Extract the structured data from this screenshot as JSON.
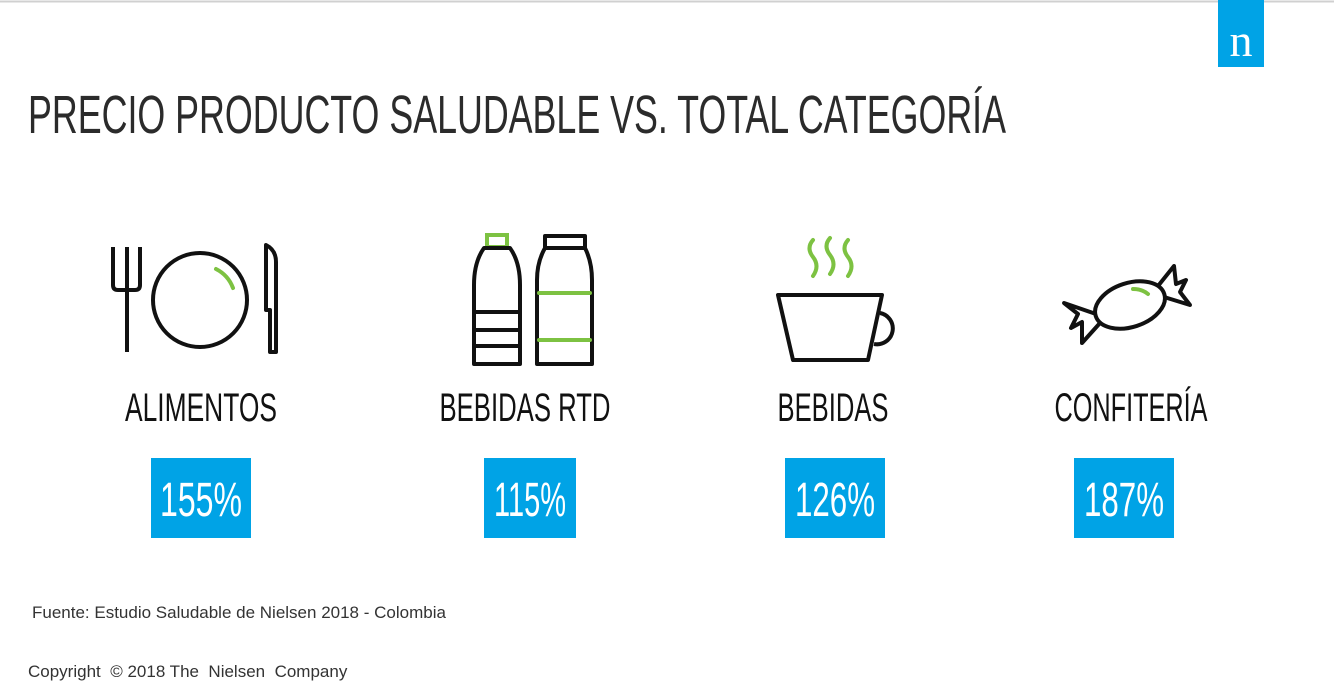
{
  "logo": "n",
  "title": "PRECIO PRODUCTO SALUDABLE VS. TOTAL CATEGORÍA",
  "items": [
    {
      "label": "ALIMENTOS",
      "value": "155%"
    },
    {
      "label": "BEBIDAS RTD",
      "value": "115%"
    },
    {
      "label": "BEBIDAS",
      "value": "126%"
    },
    {
      "label": "CONFITERÍA",
      "value": "187%"
    }
  ],
  "source": "Fuente: Estudio Saludable de Nielsen 2018 - Colombia",
  "copyright": "Copyright  © 2018 The  Nielsen  Company"
}
